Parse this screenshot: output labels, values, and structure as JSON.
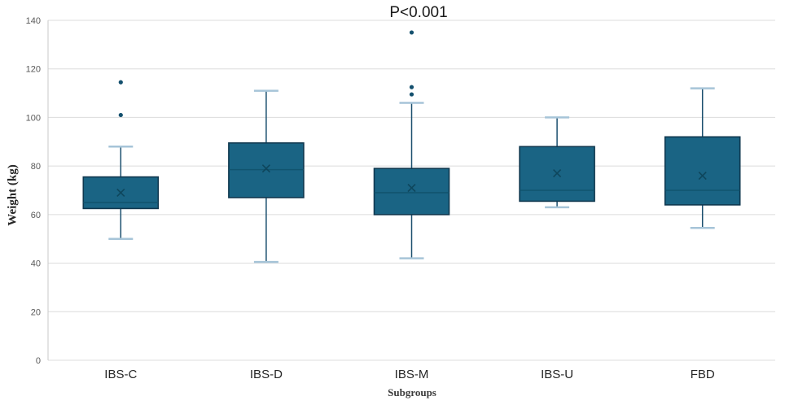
{
  "annotation": {
    "text": "P<0.001"
  },
  "chart_data": {
    "type": "boxplot",
    "title": "",
    "xlabel": "Subgroups",
    "ylabel": "Weight (kg)",
    "ylim": [
      0,
      140
    ],
    "yticks": [
      0,
      20,
      40,
      60,
      80,
      100,
      120,
      140
    ],
    "grid": "horizontal",
    "legend": "none",
    "categories": [
      "IBS-C",
      "IBS-D",
      "IBS-M",
      "IBS-U",
      "FBD"
    ],
    "series": [
      {
        "name": "IBS-C",
        "min": 50,
        "q1": 62.5,
        "median": 65,
        "mean": 69,
        "q3": 75.5,
        "max": 88,
        "outliers": [
          101,
          114.5
        ]
      },
      {
        "name": "IBS-D",
        "min": 40.5,
        "q1": 67,
        "median": 78.5,
        "mean": 79,
        "q3": 89.5,
        "max": 111,
        "outliers": []
      },
      {
        "name": "IBS-M",
        "min": 42,
        "q1": 60,
        "median": 69,
        "mean": 71,
        "q3": 79,
        "max": 106,
        "outliers": [
          109.5,
          112.5,
          135
        ]
      },
      {
        "name": "IBS-U",
        "min": 63,
        "q1": 65.5,
        "median": 70,
        "mean": 77,
        "q3": 88,
        "max": 100,
        "outliers": []
      },
      {
        "name": "FBD",
        "min": 54.5,
        "q1": 64,
        "median": 70,
        "mean": 76,
        "q3": 92,
        "max": 112,
        "outliers": []
      }
    ],
    "annotation_text": "P<0.001"
  },
  "colors": {
    "background": "#ffffff",
    "box_fill": "#1a6484",
    "box_border": "#10384f",
    "median_line": "#11536d",
    "mean_marker": "#0d4258",
    "whisker_line": "#1b4f6e",
    "whisker_cap": "#a6c4d8",
    "outlier": "#14506e",
    "gridline": "#dcdcdc",
    "axis_line": "#c9c9c9",
    "tick_label": "#595959",
    "category_label": "#262626"
  }
}
